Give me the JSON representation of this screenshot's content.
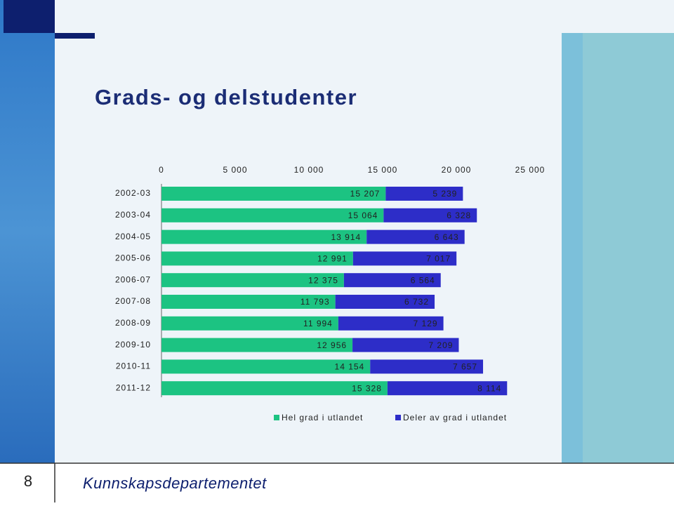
{
  "chart_data": {
    "type": "stacked-hbar",
    "title": "Grads- og delstudenter",
    "categories": [
      "2002-03",
      "2003-04",
      "2004-05",
      "2005-06",
      "2006-07",
      "2007-08",
      "2008-09",
      "2009-10",
      "2010-11",
      "2011-12"
    ],
    "series": [
      {
        "name": "Hel grad i utlandet",
        "color": "#1cc382",
        "values": [
          15207,
          15064,
          13914,
          12991,
          12375,
          11793,
          11994,
          12956,
          14154,
          15328
        ],
        "value_labels": [
          "15 207",
          "15 064",
          "13 914",
          "12 991",
          "12 375",
          "11 793",
          "11 994",
          "12 956",
          "14 154",
          "15 328"
        ]
      },
      {
        "name": "Deler av grad i utlandet",
        "color": "#2d2dc8",
        "values": [
          5239,
          6328,
          6643,
          7017,
          6564,
          6732,
          7129,
          7209,
          7657,
          8114
        ],
        "value_labels": [
          "5 239",
          "6 328",
          "6 643",
          "7 017",
          "6 564",
          "6 732",
          "7 129",
          "7 209",
          "7 657",
          "8 114"
        ]
      }
    ],
    "xlim": [
      0,
      25000
    ],
    "xticks": [
      0,
      {
        "value": 5000,
        "label": "5 000"
      },
      {
        "value": 10000,
        "label": "10 000"
      },
      {
        "value": 15000,
        "label": "15 000"
      },
      {
        "value": 20000,
        "label": "20 000"
      },
      {
        "value": 25000,
        "label": "25 000"
      }
    ]
  },
  "footer": {
    "page_number": "8",
    "organization": "Kunnskapsdepartementet"
  }
}
